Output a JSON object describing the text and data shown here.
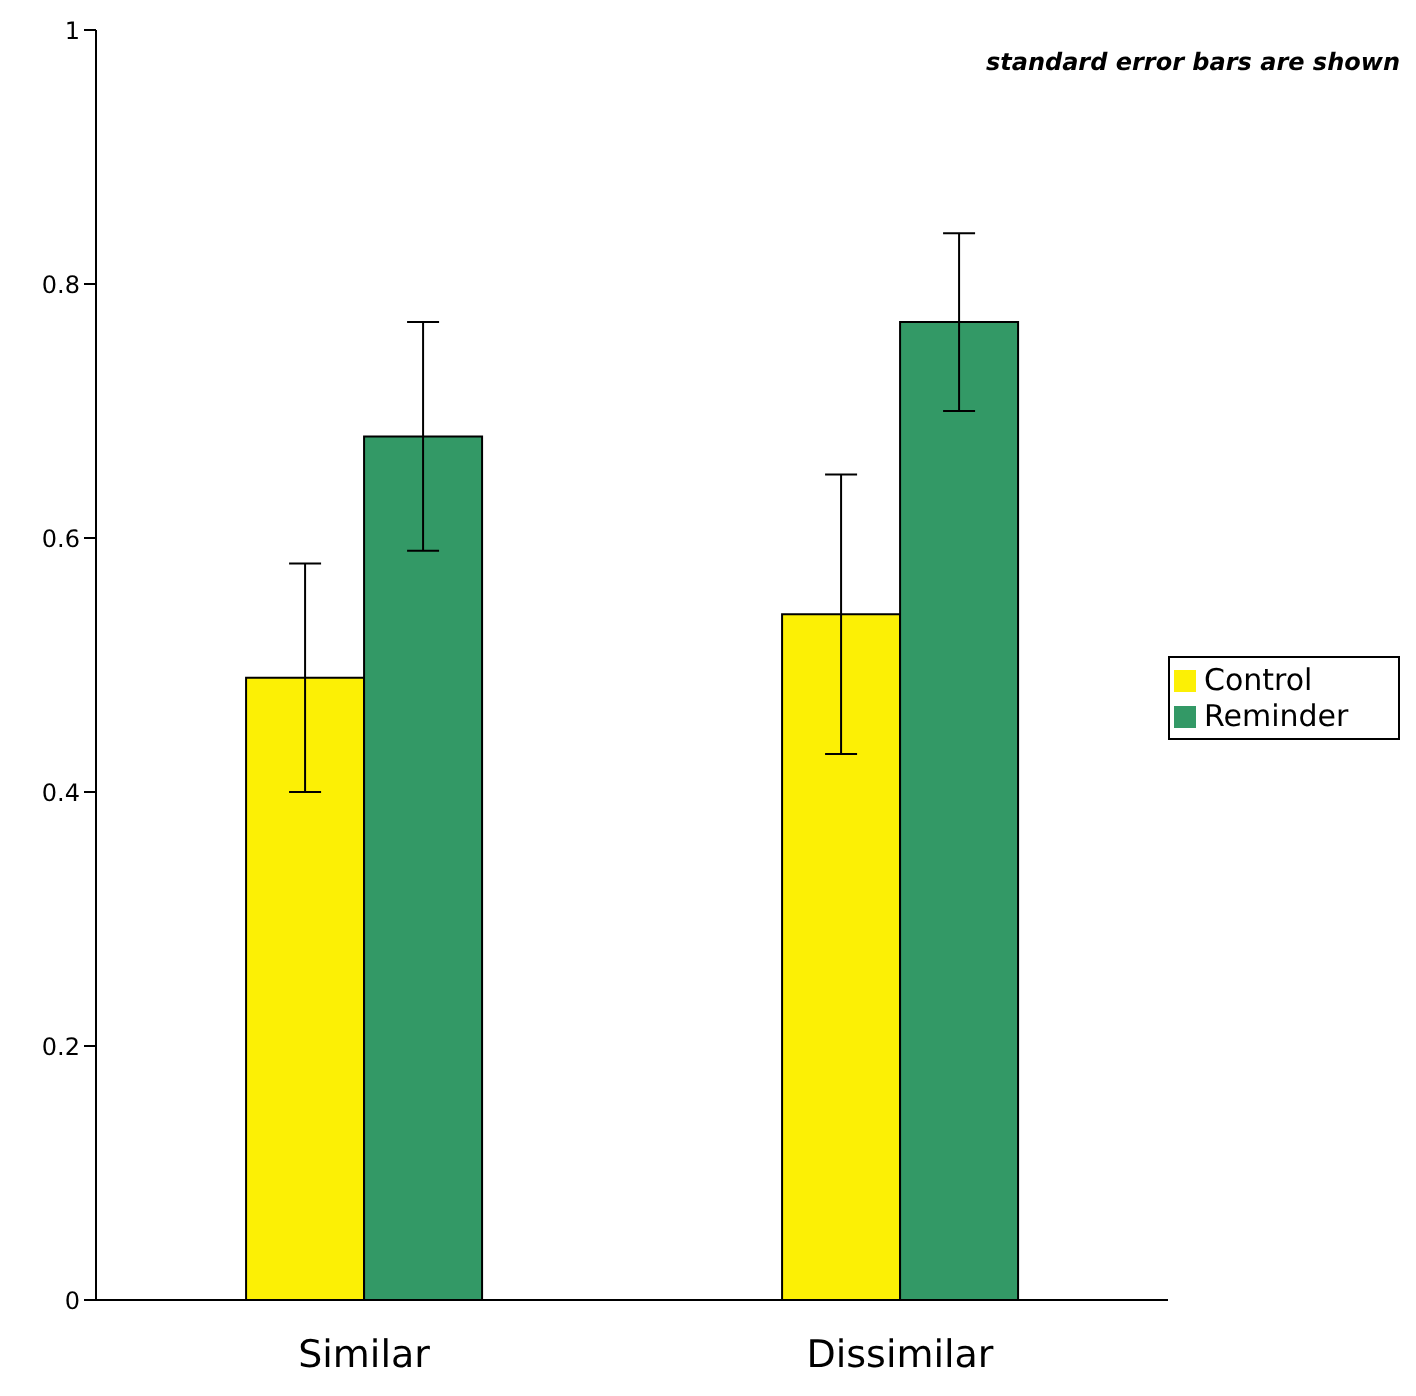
{
  "chart_data": {
    "type": "bar",
    "categories": [
      "Similar",
      "Dissimilar"
    ],
    "series": [
      {
        "name": "Control",
        "color": "#fcf005",
        "values": [
          0.49,
          0.54
        ],
        "errors": [
          0.09,
          0.11
        ]
      },
      {
        "name": "Reminder",
        "color": "#339966",
        "values": [
          0.68,
          0.77
        ],
        "errors": [
          0.09,
          0.07
        ]
      }
    ],
    "ylim": [
      0,
      1
    ],
    "yticks": [
      0,
      0.2,
      0.4,
      0.6,
      0.8,
      1
    ],
    "grid": false,
    "legend": "right",
    "annotations": [
      "standard error bars are shown"
    ]
  }
}
